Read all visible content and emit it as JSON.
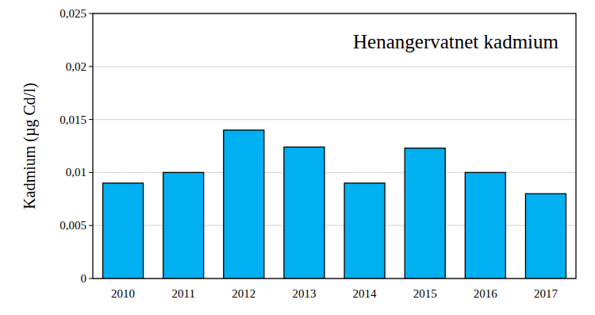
{
  "chart_data": {
    "type": "bar",
    "title": "Henangervatnet kadmium",
    "y_label": "Kadmium (µg Cd/l)",
    "categories": [
      "2010",
      "2011",
      "2012",
      "2013",
      "2014",
      "2015",
      "2016",
      "2017"
    ],
    "values": [
      0.009,
      0.01,
      0.014,
      0.0124,
      0.009,
      0.0123,
      0.01,
      0.008
    ],
    "color": "#00b0f0",
    "ylim": [
      0,
      0.025
    ],
    "yticks": [
      0,
      {
        "value": 0.005,
        "label": "0,005"
      },
      {
        "value": 0.01,
        "label": "0,01"
      },
      {
        "value": 0.015,
        "label": "0,015"
      },
      {
        "value": 0.02,
        "label": "0,02"
      },
      {
        "value": 0.025,
        "label": "0,025"
      }
    ],
    "grid": true
  }
}
